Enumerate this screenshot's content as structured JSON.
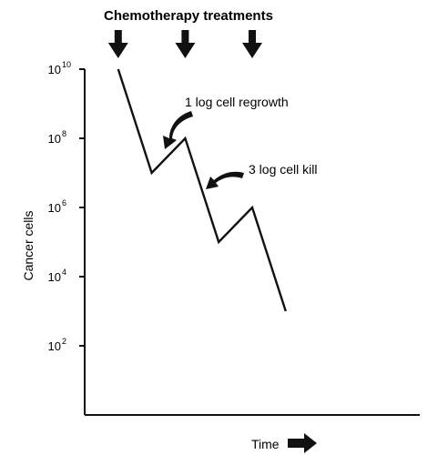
{
  "chart_data": {
    "type": "line",
    "title": "Chemotherapy treatments",
    "xlabel": "Time",
    "ylabel": "Cancer cells",
    "yscale": "log",
    "ylim": [
      1,
      10000000000
    ],
    "xlim": [
      0,
      10
    ],
    "y_ticks": [
      {
        "base": "10",
        "exp": "10",
        "value": 10000000000
      },
      {
        "base": "10",
        "exp": "8",
        "value": 100000000
      },
      {
        "base": "10",
        "exp": "6",
        "value": 1000000
      },
      {
        "base": "10",
        "exp": "4",
        "value": 10000
      },
      {
        "base": "10",
        "exp": "2",
        "value": 100
      }
    ],
    "series": [
      {
        "x": [
          1.0,
          2.0,
          3.0,
          4.0,
          5.0,
          6.0
        ],
        "y": [
          10000000000,
          10000000,
          100000000,
          100000,
          1000000,
          1000
        ]
      }
    ],
    "treatment_times": [
      1.0,
      3.0,
      5.0
    ],
    "annotations": [
      {
        "id": "regrowth",
        "text": "1 log cell regrowth"
      },
      {
        "id": "kill",
        "text": "3 log cell kill"
      }
    ],
    "grid": false,
    "legend": "none"
  }
}
